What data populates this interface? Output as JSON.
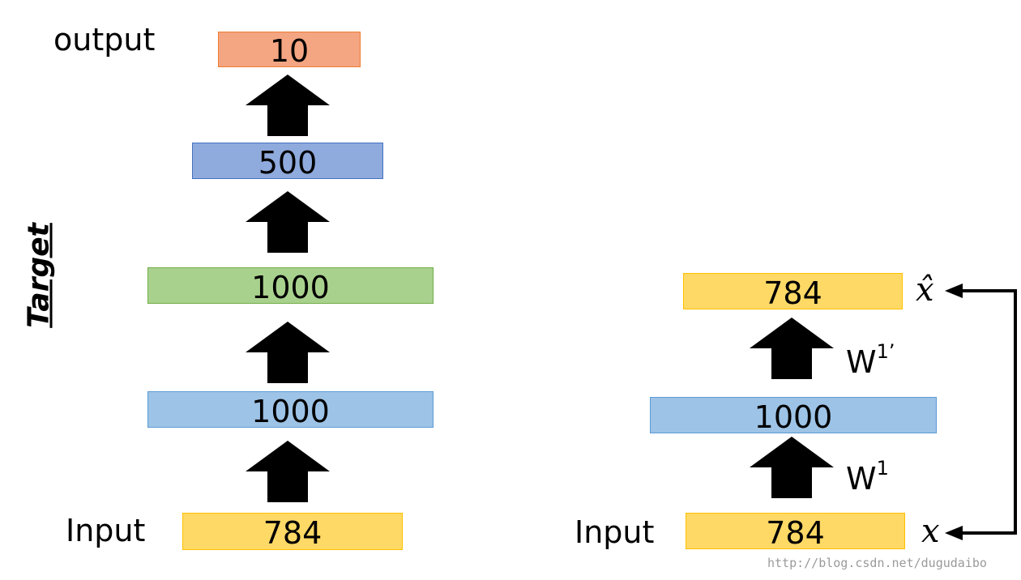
{
  "left_net": {
    "output_label": "output",
    "input_label": "Input",
    "target_label": "Target",
    "layers": {
      "output": {
        "value": "10",
        "fill": "#F4A582"
      },
      "hidden3": {
        "value": "500",
        "fill": "#8FAADC"
      },
      "hidden2": {
        "value": "1000",
        "fill": "#A9D18E"
      },
      "hidden1": {
        "value": "1000",
        "fill": "#9DC3E6"
      },
      "input": {
        "value": "784",
        "fill": "#FFD966"
      }
    }
  },
  "right_net": {
    "input_label": "Input",
    "layers": {
      "reconstruction": {
        "value": "784",
        "fill": "#FFD966"
      },
      "hidden": {
        "value": "1000",
        "fill": "#9DC3E6"
      },
      "input": {
        "value": "784",
        "fill": "#FFD966"
      }
    },
    "weights": {
      "encoder_base": "W",
      "encoder_sup": "1",
      "decoder_base": "W",
      "decoder_sup": "1’"
    },
    "x_hat_label": "x̂",
    "x_label": "x"
  },
  "watermark": "http://blog.csdn.net/dugudaibo"
}
